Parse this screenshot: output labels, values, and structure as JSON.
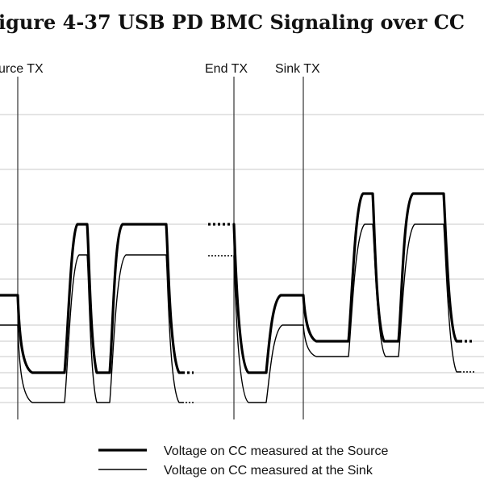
{
  "title": "igure 4-37  USB PD BMC Signaling over CC",
  "markers": {
    "source_tx": "urce TX",
    "end_tx": "End TX",
    "sink_tx": "Sink TX"
  },
  "legend": [
    {
      "label": "Voltage on CC measured at the Source",
      "style": "thick"
    },
    {
      "label": "Voltage on CC measured at the Sink",
      "style": "thin"
    }
  ],
  "colors": {
    "waveform": "#000000",
    "grid": "#c8c8c8",
    "background": "#ffffff"
  }
}
